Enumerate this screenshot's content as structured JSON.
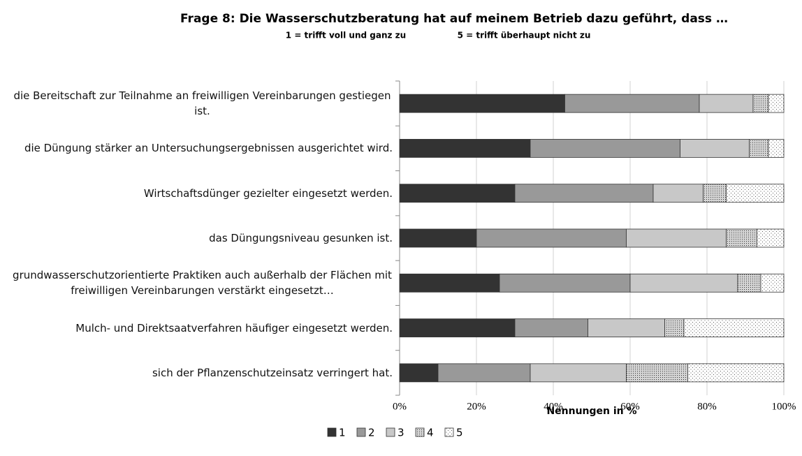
{
  "chart_data": {
    "type": "stacked-bar-horizontal",
    "title": "Frage 8: Die Wasserschutzberatung hat auf meinem Betrieb dazu geführt, dass …",
    "subtitle_left": "1 = trifft voll und ganz zu",
    "subtitle_right": "5 = trifft überhaupt nicht zu",
    "x_label": "Nennungen in %",
    "categories": [
      "die Bereitschaft zur Teilnahme an freiwilligen Vereinbarungen gestiegen ist.",
      "die Düngung stärker an Untersuchungsergebnissen ausgerichtet wird.",
      "Wirtschaftsdünger gezielter eingesetzt werden.",
      "das Düngungsniveau gesunken ist.",
      "grundwasserschutzorientierte Praktiken auch außerhalb der Flächen mit freiwilligen Vereinbarungen verstärkt eingesetzt…",
      "Mulch- und Direktsaatverfahren häufiger eingesetzt werden.",
      "sich der Pflanzenschutzeinsatz verringert hat."
    ],
    "series": [
      {
        "name": "1",
        "color": "#333333",
        "values": [
          43,
          34,
          30,
          20,
          26,
          30,
          10
        ]
      },
      {
        "name": "2",
        "color": "#999999",
        "values": [
          35,
          39,
          36,
          39,
          34,
          19,
          24
        ]
      },
      {
        "name": "3",
        "color": "#c8c8c8",
        "values": [
          14,
          18,
          13,
          26,
          28,
          20,
          25
        ]
      },
      {
        "name": "4",
        "color": "#d4d4d4",
        "pattern": "dense-dots",
        "values": [
          4,
          5,
          6,
          8,
          6,
          5,
          16
        ]
      },
      {
        "name": "5",
        "color": "#ffffff",
        "pattern": "sparse-dots",
        "values": [
          4,
          4,
          15,
          7,
          6,
          26,
          25
        ]
      }
    ],
    "xlim": [
      0,
      100
    ],
    "xticks": [
      {
        "value": 0,
        "label": "0%"
      },
      {
        "value": 20,
        "label": "20%"
      },
      {
        "value": 40,
        "label": "40%"
      },
      {
        "value": 60,
        "label": "60%"
      },
      {
        "value": 80,
        "label": "80%"
      },
      {
        "value": 100,
        "label": "100%"
      }
    ],
    "grid": true,
    "legend": "bottom"
  }
}
